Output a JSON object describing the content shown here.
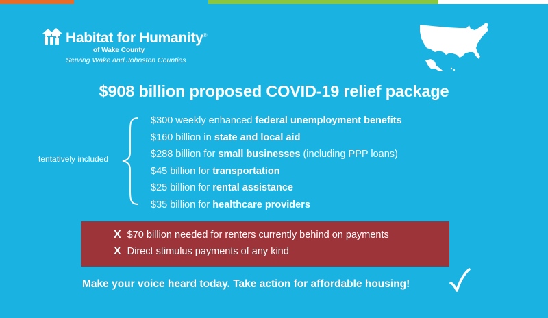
{
  "brand": {
    "name": "Habitat for Humanity",
    "registered_mark": "®",
    "affiliate": "of Wake County",
    "tagline": "Serving Wake and Johnston Counties",
    "logo_icon": "habitat-houses-logo",
    "map_icon": "usa-map"
  },
  "headline": "$908 billion proposed COVID-19 relief package",
  "included_label": "tentatively included",
  "included_items": [
    {
      "prefix": "$300 weekly enhanced ",
      "bold": "federal unemployment benefits",
      "suffix": ""
    },
    {
      "prefix": "$160 billion in ",
      "bold": "state and local aid",
      "suffix": ""
    },
    {
      "prefix": "$288 billion for ",
      "bold": "small businesses",
      "suffix": " (including PPP loans)"
    },
    {
      "prefix": "$45 billion for ",
      "bold": "transportation",
      "suffix": ""
    },
    {
      "prefix": "$25 billion for ",
      "bold": "rental assistance",
      "suffix": ""
    },
    {
      "prefix": "$35 billion for ",
      "bold": "healthcare providers",
      "suffix": ""
    }
  ],
  "excluded": {
    "marker": "X",
    "items": [
      "$70 billion needed for renters currently behind on payments",
      "Direct stimulus payments of any kind"
    ]
  },
  "call_to_action": "Make your voice heard today. Take action for affordable housing!",
  "colors": {
    "background": "#1ab2e1",
    "excluded_box": "#9c343a",
    "text": "#ffffff",
    "topbar": [
      "#e86b26",
      "#1ab2e1",
      "#8cc63f",
      "#ffffff"
    ]
  }
}
